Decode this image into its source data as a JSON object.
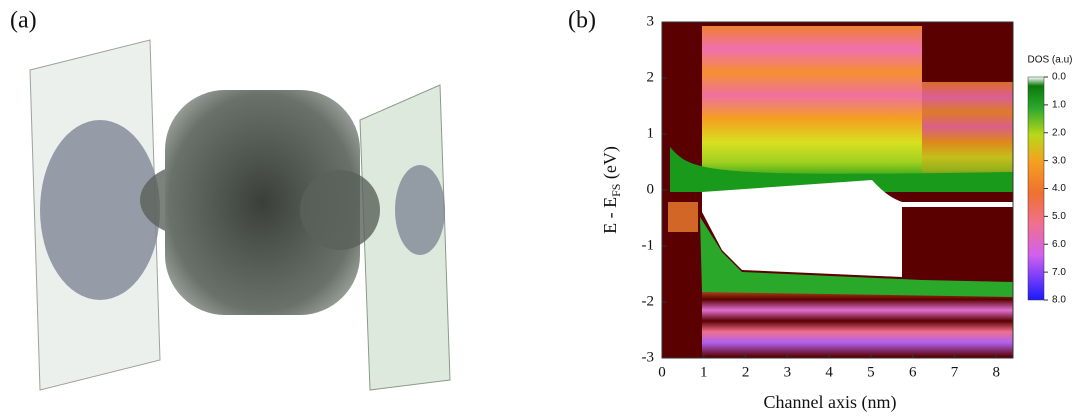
{
  "panel_a": {
    "label": "(a)"
  },
  "chart_data": {
    "type": "heatmap",
    "label": "(b)",
    "xlabel": "Channel axis (nm)",
    "ylabel": [
      "E - E",
      "FS",
      " (eV)"
    ],
    "xlim": [
      0,
      8.4
    ],
    "xticks": [
      0,
      1,
      2,
      3,
      4,
      5,
      6,
      7,
      8
    ],
    "ylim": [
      -3,
      3
    ],
    "yticks": [
      -3,
      -2,
      -1,
      0,
      1,
      2,
      3
    ],
    "colorbar": {
      "title": "DOS (a.u)",
      "clim": [
        0,
        8
      ],
      "ticks": [
        {
          "value": 0,
          "label": "0.0"
        },
        {
          "value": 1,
          "label": "1.0"
        },
        {
          "value": 2,
          "label": "2.0"
        },
        {
          "value": 3,
          "label": "3.0"
        },
        {
          "value": 4,
          "label": "4.0"
        },
        {
          "value": 5,
          "label": "5.0"
        },
        {
          "value": 6,
          "label": "6.0"
        },
        {
          "value": 7,
          "label": "7.0"
        },
        {
          "value": 8,
          "label": "8.0"
        }
      ]
    }
  }
}
